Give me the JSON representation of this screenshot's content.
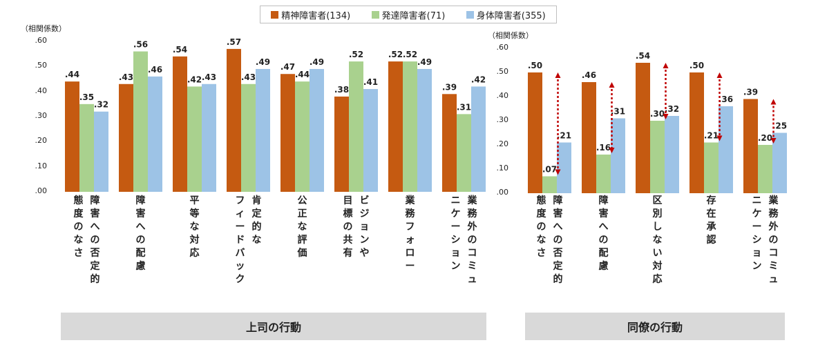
{
  "legend": [
    {
      "name": "精神障害者(134)",
      "color": "#C55A11"
    },
    {
      "name": "発達障害者(71)",
      "color": "#A9D18E"
    },
    {
      "name": "身体障害者(355)",
      "color": "#9DC3E6"
    }
  ],
  "panels": {
    "left_title": "上司の行動",
    "right_title": "同僚の行動",
    "ylabel": "（相関係数）"
  },
  "ticks": [
    ".60",
    ".50",
    ".40",
    ".30",
    ".20",
    ".10",
    ".00"
  ],
  "cat_left": [
    [
      "態度のなさ",
      "障害への否定的"
    ],
    [
      "障害への配慮"
    ],
    [
      "平等な対応"
    ],
    [
      "フィードバック",
      "肯定的な"
    ],
    [
      "公正な評価"
    ],
    [
      "目標の共有",
      "ビジョンや"
    ],
    [
      "業務フォロー"
    ],
    [
      "ニケーション",
      "業務外のコミュ"
    ]
  ],
  "cat_right": [
    [
      "態度のなさ",
      "障害への否定的"
    ],
    [
      "障害への配慮"
    ],
    [
      "区別しない対応"
    ],
    [
      "存在承認"
    ],
    [
      "ニケーション",
      "業務外のコミュ"
    ]
  ],
  "chart_data": [
    {
      "type": "bar",
      "title": "上司の行動",
      "ylabel": "（相関係数）",
      "ylim": [
        0,
        0.6
      ],
      "categories": [
        "障害への否定的態度のなさ",
        "障害への配慮",
        "平等な対応",
        "肯定的なフィードバック",
        "公正な評価",
        "ビジョンや目標の共有",
        "業務フォロー",
        "業務外のコミュニケーション"
      ],
      "series": [
        {
          "name": "精神障害者(134)",
          "values": [
            0.44,
            0.43,
            0.54,
            0.57,
            0.47,
            0.38,
            0.52,
            0.39
          ],
          "labels": [
            ".44",
            ".43",
            ".54",
            ".57",
            ".47",
            ".38",
            ".52",
            ".39"
          ]
        },
        {
          "name": "発達障害者(71)",
          "values": [
            0.35,
            0.56,
            0.42,
            0.43,
            0.44,
            0.52,
            0.52,
            0.31
          ],
          "labels": [
            ".35",
            ".56",
            ".42",
            ".43",
            ".44",
            ".52",
            ".52",
            ".31"
          ]
        },
        {
          "name": "身体障害者(355)",
          "values": [
            0.32,
            0.46,
            0.43,
            0.49,
            0.49,
            0.41,
            0.49,
            0.42
          ],
          "labels": [
            ".32",
            ".46",
            ".43",
            ".49",
            ".49",
            ".41",
            ".49",
            ".42"
          ]
        }
      ]
    },
    {
      "type": "bar",
      "title": "同僚の行動",
      "ylabel": "（相関係数）",
      "ylim": [
        0,
        0.6
      ],
      "categories": [
        "障害への否定的態度のなさ",
        "障害への配慮",
        "区別しない対応",
        "存在承認",
        "業務外のコミュニケーション"
      ],
      "series": [
        {
          "name": "精神障害者(134)",
          "values": [
            0.5,
            0.46,
            0.54,
            0.5,
            0.39
          ],
          "labels": [
            ".50",
            ".46",
            ".54",
            ".50",
            ".39"
          ]
        },
        {
          "name": "発達障害者(71)",
          "values": [
            0.07,
            0.16,
            0.3,
            0.21,
            0.2
          ],
          "labels": [
            ".07",
            ".16",
            ".30",
            ".21",
            ".20"
          ]
        },
        {
          "name": "身体障害者(355)",
          "values": [
            0.21,
            0.31,
            0.32,
            0.36,
            0.25
          ],
          "labels": [
            ".21",
            ".31",
            ".32",
            ".36",
            ".25"
          ]
        }
      ],
      "annotations": "red dotted double-headed arrows between 精神障害者 and 発達障害者 bars in every category"
    }
  ]
}
